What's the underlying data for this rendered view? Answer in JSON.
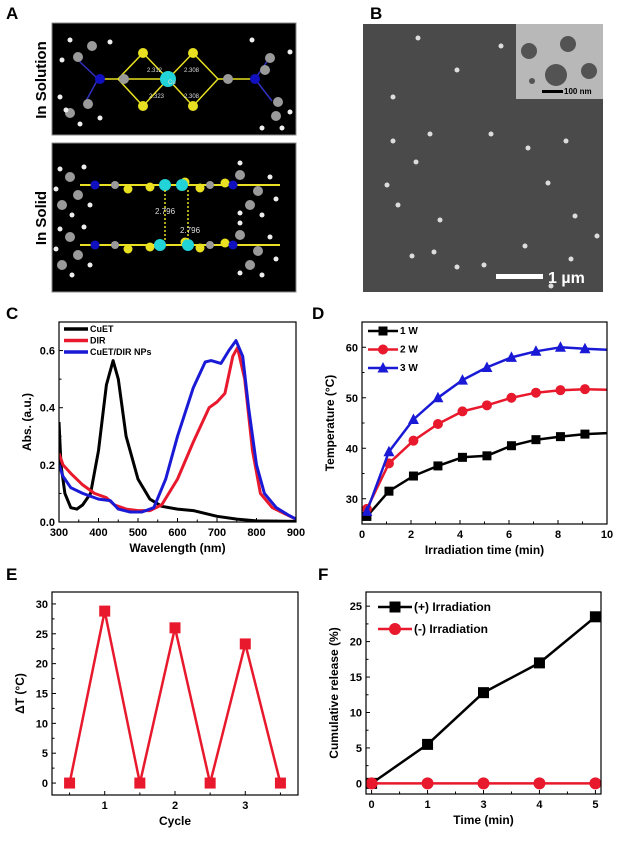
{
  "panels": {
    "A": {
      "label": "A",
      "top_caption": "In Solution",
      "bottom_caption": "In Solid",
      "solution_bonds": [
        "2.312",
        "2.308",
        "2.323",
        "2.308"
      ],
      "solution_atoms": [
        "Cu",
        "C",
        "N"
      ],
      "solid_bonds": [
        "2.796",
        "2.796"
      ]
    },
    "B": {
      "label": "B",
      "scale_bar": "1 µm",
      "inset_scale_bar": "100 nm"
    },
    "C": {
      "label": "C"
    },
    "D": {
      "label": "D"
    },
    "E": {
      "label": "E"
    },
    "F": {
      "label": "F"
    }
  },
  "colors": {
    "black": "#000000",
    "red": "#e8192c",
    "blue": "#1a1ad6",
    "cyan": "#22d3d8",
    "sulfur": "#e8e020",
    "nitrogen": "#1010c0",
    "carbon": "#9a9a9a"
  },
  "chart_data": [
    {
      "id": "C",
      "type": "line",
      "xlabel": "Wavelength (nm)",
      "ylabel": "Abs. (a.u.)",
      "xlim": [
        300,
        900
      ],
      "ylim": [
        0,
        0.7
      ],
      "xticks": [
        300,
        400,
        500,
        600,
        700,
        800,
        900
      ],
      "yticks": [
        0.0,
        0.2,
        0.4,
        0.6
      ],
      "ytick_labels": [
        "0.0",
        "0.2",
        "0.4",
        "0.6"
      ],
      "legend": "top-left",
      "series": [
        {
          "name": "CuET",
          "color": "#000000",
          "x": [
            300,
            305,
            315,
            330,
            345,
            360,
            380,
            400,
            420,
            437,
            450,
            470,
            500,
            530,
            560,
            600,
            640,
            700,
            750,
            800,
            900
          ],
          "y": [
            0.35,
            0.2,
            0.1,
            0.05,
            0.045,
            0.06,
            0.1,
            0.25,
            0.48,
            0.565,
            0.5,
            0.3,
            0.15,
            0.08,
            0.055,
            0.045,
            0.04,
            0.02,
            0.01,
            0.004,
            0.002
          ]
        },
        {
          "name": "DIR",
          "color": "#e8192c",
          "x": [
            300,
            310,
            330,
            360,
            390,
            420,
            440,
            470,
            500,
            530,
            560,
            600,
            640,
            680,
            700,
            720,
            740,
            752,
            770,
            790,
            810,
            840,
            870,
            900
          ],
          "y": [
            0.24,
            0.2,
            0.17,
            0.13,
            0.1,
            0.085,
            0.06,
            0.045,
            0.04,
            0.04,
            0.06,
            0.15,
            0.28,
            0.4,
            0.42,
            0.45,
            0.58,
            0.61,
            0.5,
            0.25,
            0.1,
            0.05,
            0.03,
            0.01
          ]
        },
        {
          "name": "CuET/DIR NPs",
          "color": "#1a1ad6",
          "x": [
            300,
            310,
            330,
            360,
            400,
            430,
            450,
            480,
            510,
            540,
            570,
            600,
            640,
            670,
            685,
            710,
            730,
            748,
            765,
            780,
            800,
            820,
            850,
            880,
            900
          ],
          "y": [
            0.2,
            0.16,
            0.12,
            0.1,
            0.08,
            0.075,
            0.045,
            0.035,
            0.035,
            0.05,
            0.15,
            0.3,
            0.47,
            0.56,
            0.565,
            0.555,
            0.6,
            0.635,
            0.58,
            0.4,
            0.2,
            0.1,
            0.05,
            0.025,
            0.01
          ]
        }
      ]
    },
    {
      "id": "D",
      "type": "line",
      "xlabel": "Irradiation time (min)",
      "ylabel": "Temperature (°C)",
      "xlim": [
        0,
        10
      ],
      "ylim": [
        25,
        65
      ],
      "xticks": [
        0,
        2,
        4,
        6,
        8,
        10
      ],
      "yticks": [
        30,
        40,
        50,
        60
      ],
      "legend": "top-left",
      "series": [
        {
          "name": "1 W",
          "color": "#000000",
          "marker": "square",
          "x": [
            0.2,
            1.1,
            2.1,
            3.1,
            4.1,
            5.1,
            6.1,
            7.1,
            8.1,
            9.1,
            10
          ],
          "y": [
            26.5,
            31.5,
            34.5,
            36.5,
            38.2,
            38.5,
            40.5,
            41.7,
            42.3,
            42.8,
            43
          ]
        },
        {
          "name": "2 W",
          "color": "#e8192c",
          "marker": "circle",
          "x": [
            0.2,
            1.1,
            2.1,
            3.1,
            4.1,
            5.1,
            6.1,
            7.1,
            8.1,
            9.1,
            10
          ],
          "y": [
            28,
            37,
            41.5,
            44.8,
            47.3,
            48.5,
            50,
            51,
            51.5,
            51.7,
            51.6
          ]
        },
        {
          "name": "3 W",
          "color": "#1a1ad6",
          "marker": "triangle",
          "x": [
            0.2,
            1.1,
            2.1,
            3.1,
            4.1,
            5.1,
            6.1,
            7.1,
            8.1,
            9.1,
            10
          ],
          "y": [
            27.5,
            39.3,
            45.7,
            50,
            53.5,
            56,
            58,
            59.2,
            60,
            59.7,
            59.5
          ]
        }
      ]
    },
    {
      "id": "E",
      "type": "line",
      "xlabel": "Cycle",
      "ylabel": "ΔT (°C)",
      "xlim": [
        0.25,
        3.75
      ],
      "ylim": [
        -2,
        32
      ],
      "xticks": [
        1,
        2,
        3
      ],
      "yticks": [
        0,
        5,
        10,
        15,
        20,
        25,
        30
      ],
      "series": [
        {
          "color": "#e8192c",
          "marker": "square",
          "x": [
            0.5,
            1,
            1.5,
            2,
            2.5,
            3,
            3.5
          ],
          "y": [
            0,
            28.8,
            0,
            26,
            0,
            23.3,
            0
          ]
        }
      ]
    },
    {
      "id": "F",
      "type": "line",
      "xlabel": "Time (min)",
      "ylabel": "Cumulative release (%)",
      "categories": [
        "0",
        "1",
        "3",
        "4",
        "5"
      ],
      "ylim": [
        -1.5,
        27
      ],
      "yticks": [
        0,
        5,
        10,
        15,
        20,
        25
      ],
      "legend": "top-left",
      "series": [
        {
          "name": "(+)  Irradiation",
          "color": "#000000",
          "marker": "square",
          "values": [
            0,
            5.5,
            12.8,
            17,
            23.5
          ]
        },
        {
          "name": "(-)  Irradiation",
          "color": "#e8192c",
          "marker": "circle",
          "values": [
            0,
            0,
            0,
            0,
            0
          ]
        }
      ]
    }
  ]
}
